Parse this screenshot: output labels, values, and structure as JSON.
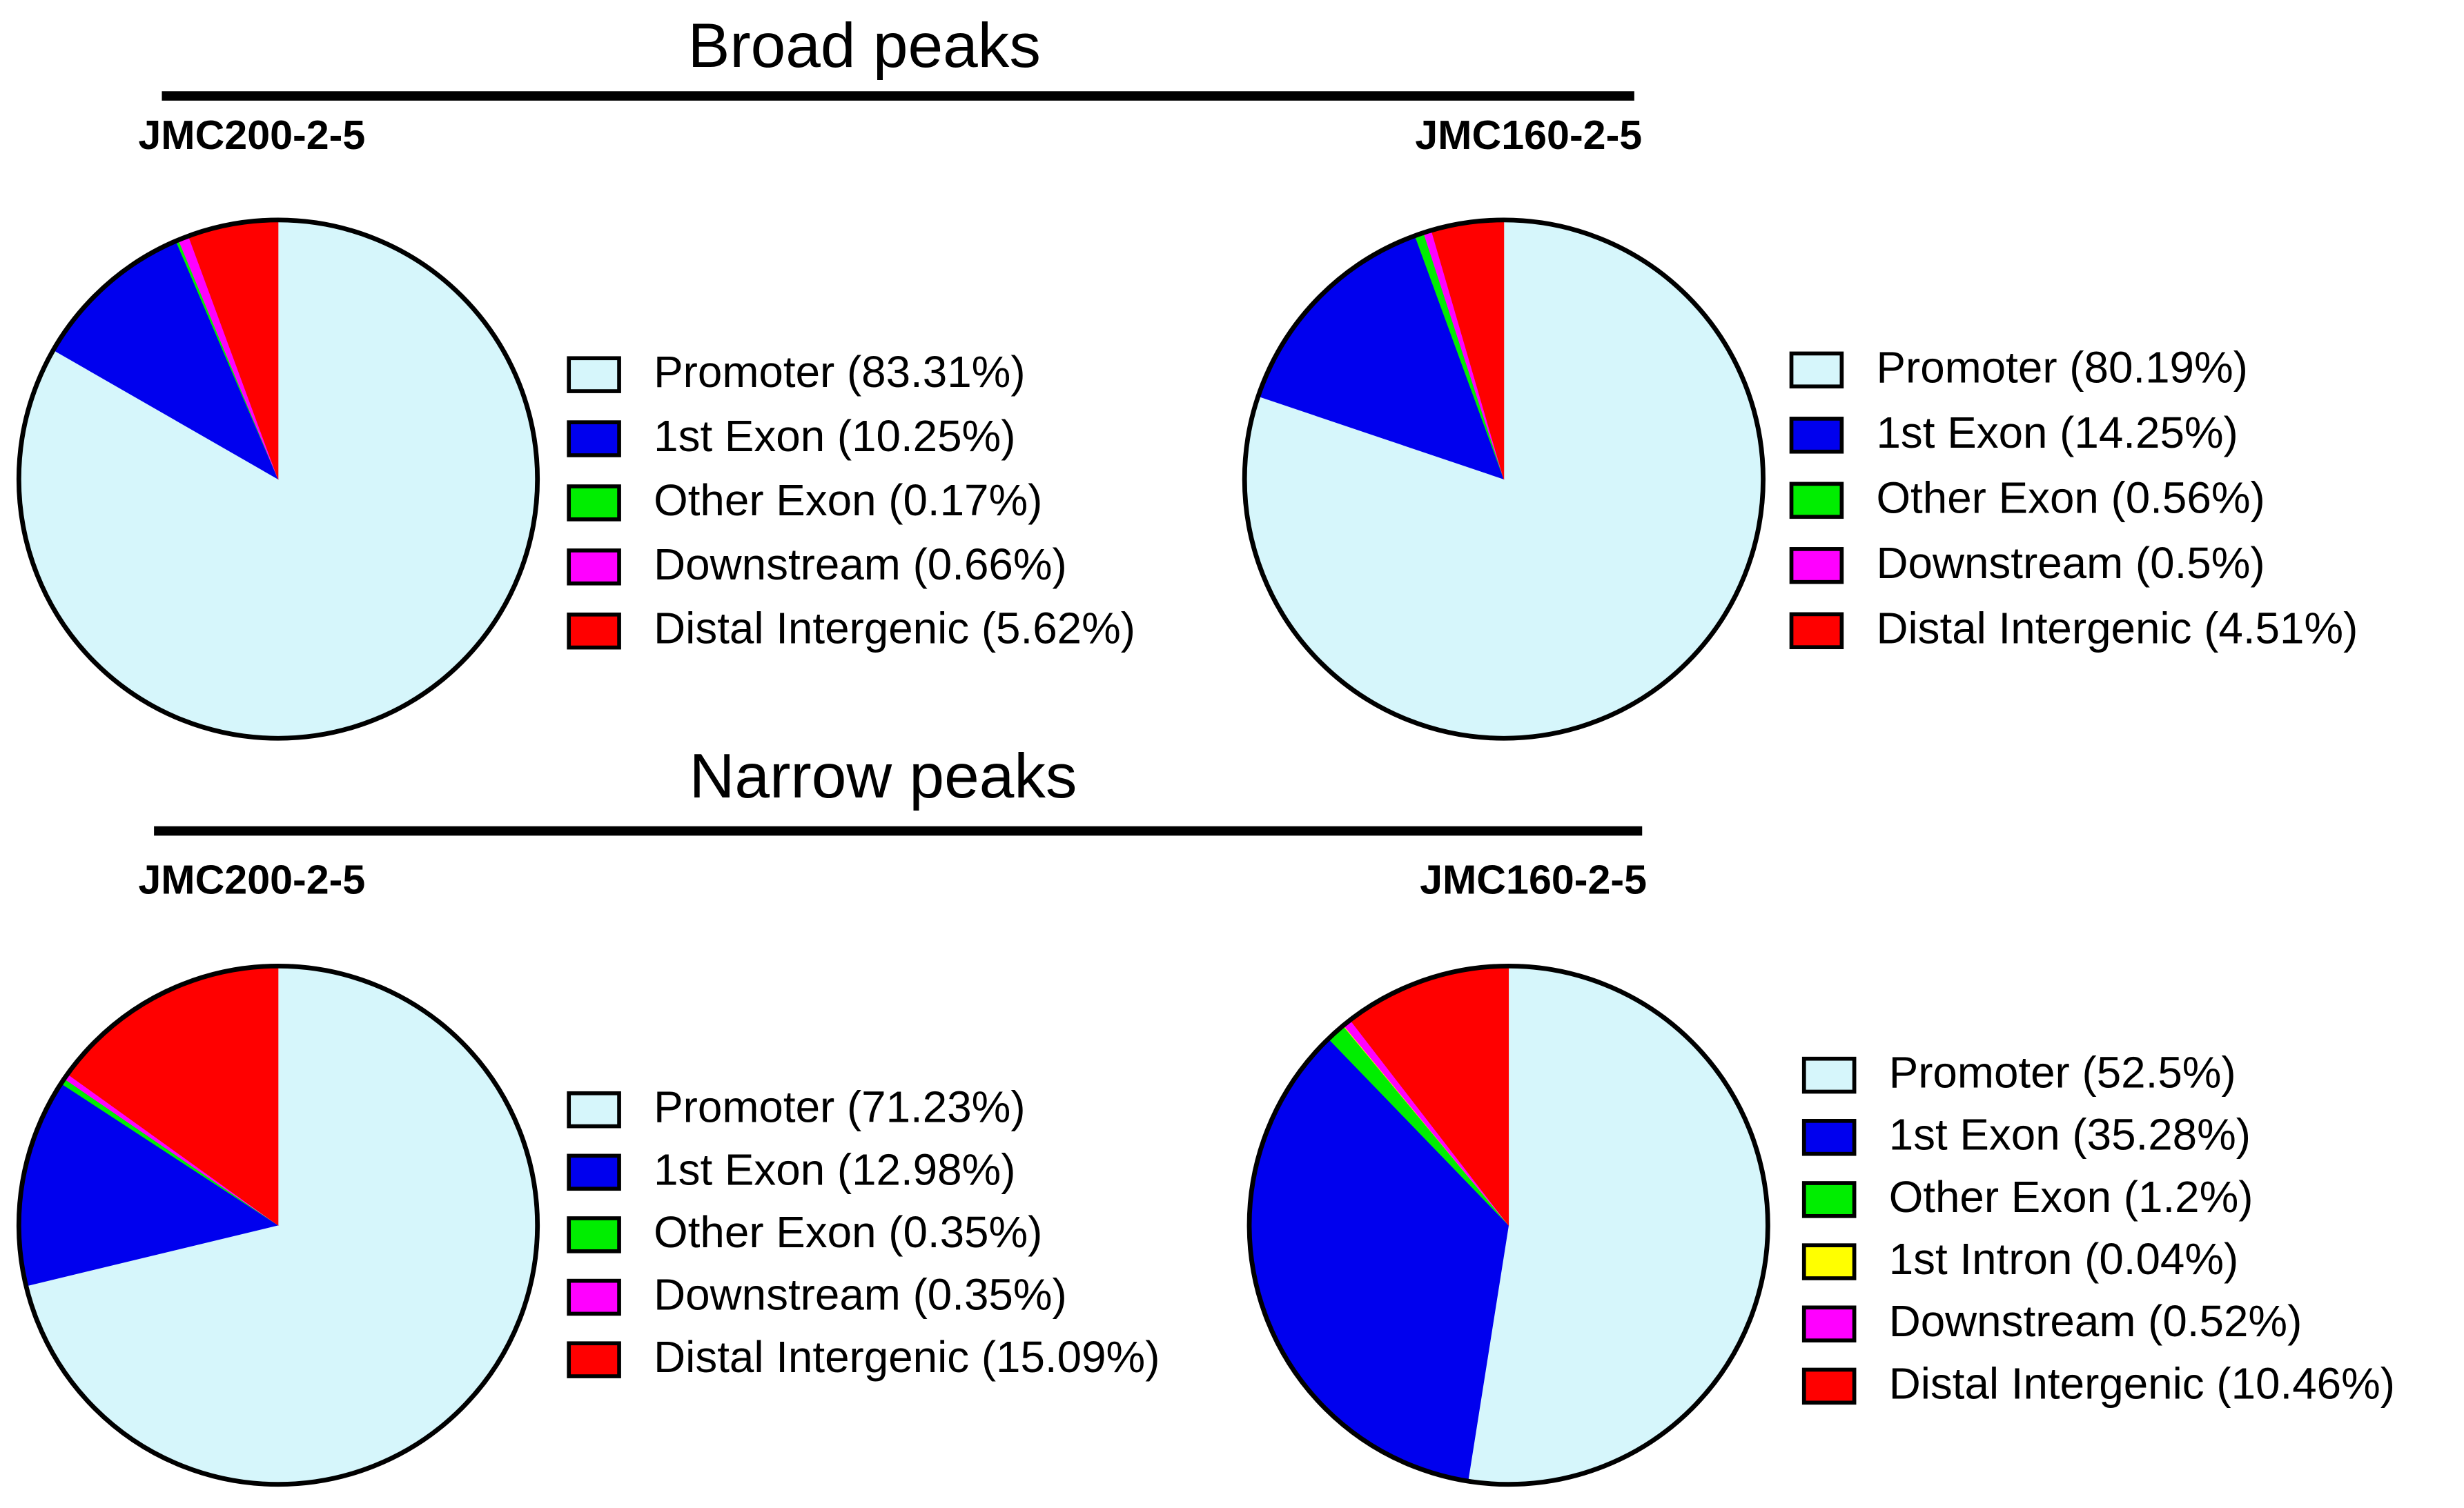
{
  "headings": [
    "Broad peaks",
    "Narrow peaks"
  ],
  "chart_data": [
    {
      "type": "pie",
      "title": "JMC200-2-5",
      "categories": [
        "Promoter (83.31%)",
        "1st Exon (10.25%)",
        "Other Exon (0.17%)",
        "Downstream (0.66%)",
        "Distal Intergenic (5.62%)"
      ],
      "values": [
        83.31,
        10.25,
        0.17,
        0.66,
        5.62
      ],
      "colors": [
        "#d6f6fb",
        "#0000ee",
        "#00ee00",
        "#ff00ff",
        "#ff0000"
      ]
    },
    {
      "type": "pie",
      "title": "JMC160-2-5",
      "categories": [
        "Promoter (80.19%)",
        "1st Exon (14.25%)",
        "Other Exon (0.56%)",
        "Downstream (0.5%)",
        "Distal Intergenic (4.51%)"
      ],
      "values": [
        80.19,
        14.25,
        0.56,
        0.5,
        4.51
      ],
      "colors": [
        "#d6f6fb",
        "#0000ee",
        "#00ee00",
        "#ff00ff",
        "#ff0000"
      ]
    },
    {
      "type": "pie",
      "title": "JMC200-2-5",
      "categories": [
        "Promoter (71.23%)",
        "1st Exon (12.98%)",
        "Other Exon (0.35%)",
        "Downstream (0.35%)",
        "Distal Intergenic (15.09%)"
      ],
      "values": [
        71.23,
        12.98,
        0.35,
        0.35,
        15.09
      ],
      "colors": [
        "#d6f6fb",
        "#0000ee",
        "#00ee00",
        "#ff00ff",
        "#ff0000"
      ]
    },
    {
      "type": "pie",
      "title": "JMC160-2-5",
      "categories": [
        "Promoter (52.5%)",
        "1st Exon (35.28%)",
        "Other Exon (1.2%)",
        "1st Intron (0.04%)",
        "Downstream (0.52%)",
        "Distal Intergenic (10.46%)"
      ],
      "values": [
        52.5,
        35.28,
        1.2,
        0.04,
        0.52,
        10.46
      ],
      "colors": [
        "#d6f6fb",
        "#0000ee",
        "#00ee00",
        "#ffff00",
        "#ff00ff",
        "#ff0000"
      ]
    }
  ]
}
